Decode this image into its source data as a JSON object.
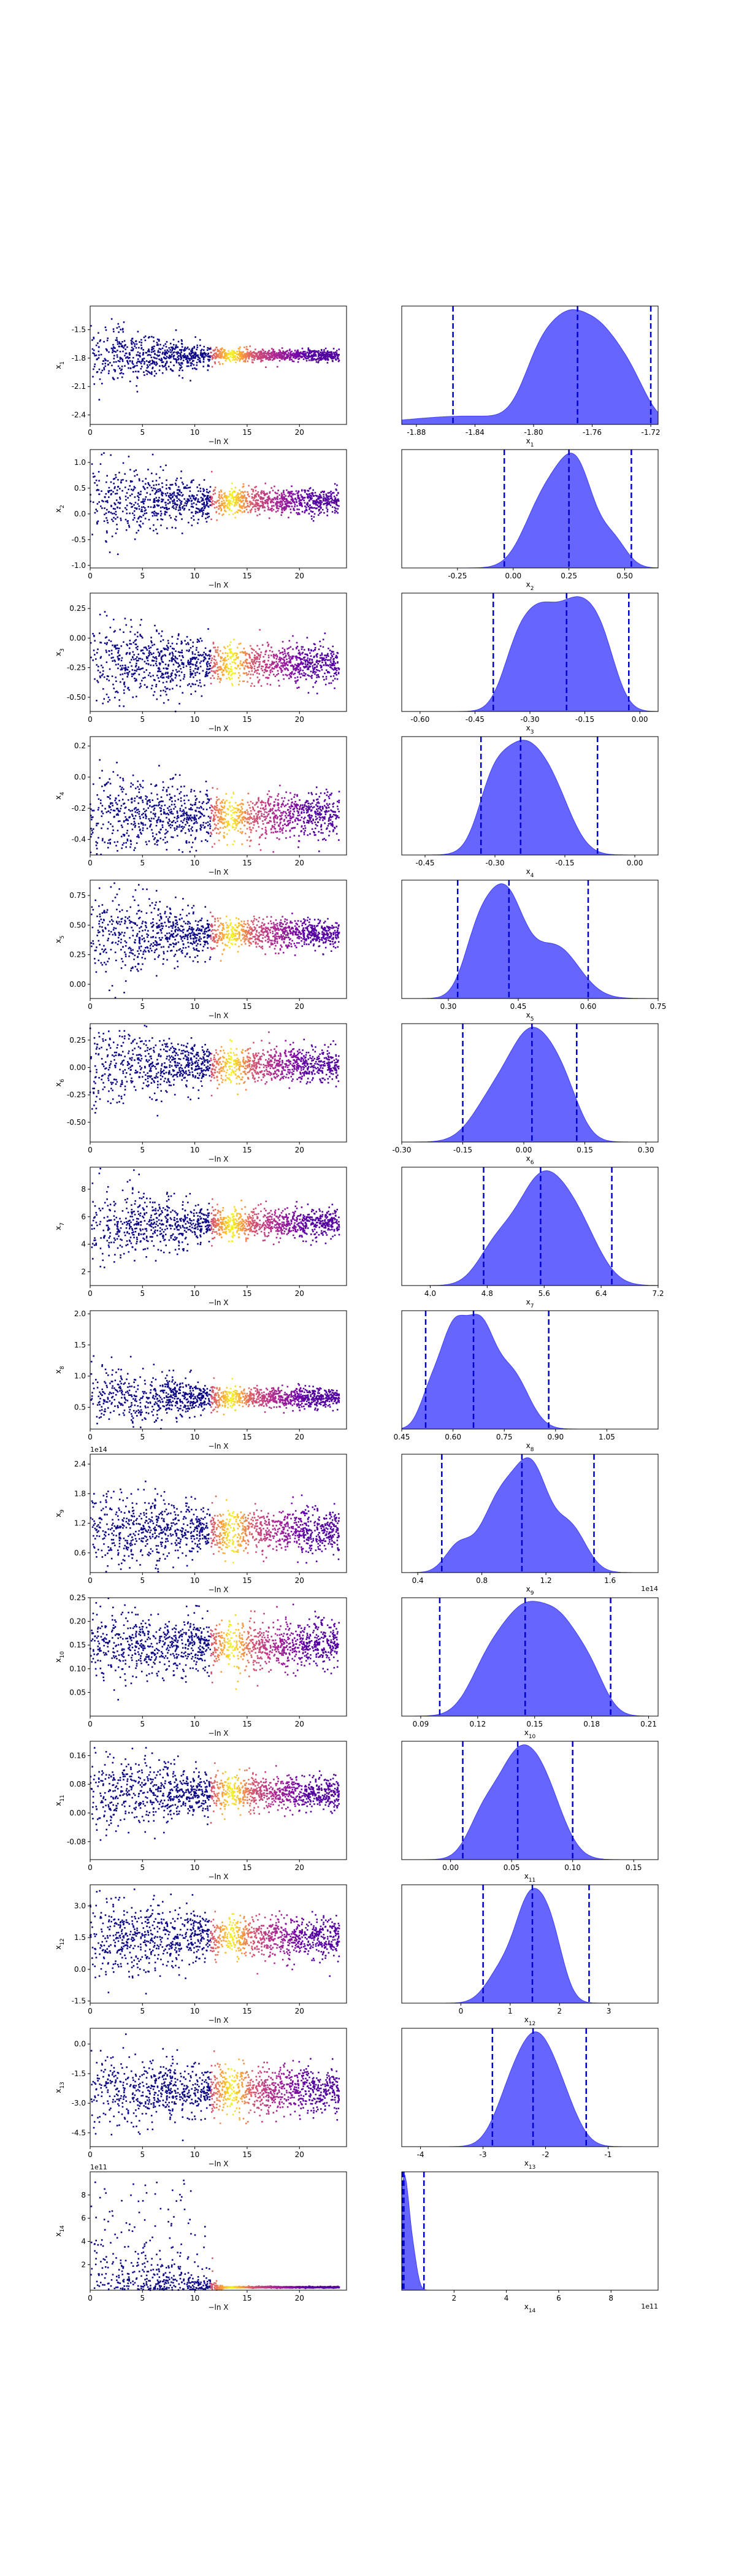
{
  "figure": {
    "colors": {
      "kde_fill": "#6666ff",
      "kde_edge": "#4040ff",
      "quantile_line": "#0000cc",
      "scatter_cmap": [
        "#0d0887",
        "#6a00a8",
        "#b12a90",
        "#e16462",
        "#fca636",
        "#f0f921"
      ]
    }
  },
  "chart_data": [
    {
      "type": "scatter",
      "xlabel": "−ln X",
      "ylabel": "x1",
      "xlim": [
        0,
        24.5
      ],
      "ylim": [
        -2.5,
        -1.25
      ],
      "xticks": [
        "0",
        "5",
        "10",
        "15",
        "20"
      ],
      "yticks": [
        "-1.5",
        "-1.8",
        "-2.1",
        "-2.4"
      ],
      "ytick_values": [
        -1.5,
        -1.8,
        -2.1,
        -2.4
      ],
      "center": -1.77,
      "sd_early": 0.18,
      "sd_late": 0.03,
      "offset": ""
    },
    {
      "type": "scatter",
      "xlabel": "−ln X",
      "ylabel": "x2",
      "xlim": [
        0,
        24.5
      ],
      "ylim": [
        -1.05,
        1.25
      ],
      "xticks": [
        "0",
        "5",
        "10",
        "15",
        "20"
      ],
      "yticks": [
        "1.0",
        "0.5",
        "0.0",
        "-0.5",
        "-1.0"
      ],
      "ytick_values": [
        1.0,
        0.5,
        0.0,
        -0.5,
        -1.0
      ],
      "center": 0.25,
      "sd_early": 0.42,
      "sd_late": 0.12,
      "offset": ""
    },
    {
      "type": "scatter",
      "xlabel": "−ln X",
      "ylabel": "x3",
      "xlim": [
        0,
        24.5
      ],
      "ylim": [
        -0.62,
        0.38
      ],
      "xticks": [
        "0",
        "5",
        "10",
        "15",
        "20"
      ],
      "yticks": [
        "0.25",
        "0.00",
        "-0.25",
        "-0.50"
      ],
      "ytick_values": [
        0.25,
        0.0,
        -0.25,
        -0.5
      ],
      "center": -0.22,
      "sd_early": 0.2,
      "sd_late": 0.08,
      "offset": ""
    },
    {
      "type": "scatter",
      "xlabel": "−ln X",
      "ylabel": "x4",
      "xlim": [
        0,
        24.5
      ],
      "ylim": [
        -0.5,
        0.26
      ],
      "xticks": [
        "0",
        "5",
        "10",
        "15",
        "20"
      ],
      "yticks": [
        "0.2",
        "0.0",
        "-0.2",
        "-0.4"
      ],
      "ytick_values": [
        0.2,
        0.0,
        -0.2,
        -0.4
      ],
      "center": -0.25,
      "sd_early": 0.15,
      "sd_late": 0.07,
      "offset": ""
    },
    {
      "type": "scatter",
      "xlabel": "−ln X",
      "ylabel": "x5",
      "xlim": [
        0,
        24.5
      ],
      "ylim": [
        -0.12,
        0.88
      ],
      "xticks": [
        "0",
        "5",
        "10",
        "15",
        "20"
      ],
      "yticks": [
        "0.75",
        "0.50",
        "0.25",
        "0.00"
      ],
      "ytick_values": [
        0.75,
        0.5,
        0.25,
        0.0
      ],
      "center": 0.43,
      "sd_early": 0.2,
      "sd_late": 0.06,
      "offset": ""
    },
    {
      "type": "scatter",
      "xlabel": "−ln X",
      "ylabel": "x6",
      "xlim": [
        0,
        24.5
      ],
      "ylim": [
        -0.68,
        0.4
      ],
      "xticks": [
        "0",
        "5",
        "10",
        "15",
        "20"
      ],
      "yticks": [
        "0.25",
        "0.00",
        "-0.25",
        "-0.50"
      ],
      "ytick_values": [
        0.25,
        0.0,
        -0.25,
        -0.5
      ],
      "center": 0.02,
      "sd_early": 0.2,
      "sd_late": 0.08,
      "offset": ""
    },
    {
      "type": "scatter",
      "xlabel": "−ln X",
      "ylabel": "x7",
      "xlim": [
        0,
        24.5
      ],
      "ylim": [
        1.0,
        9.6
      ],
      "xticks": [
        "0",
        "5",
        "10",
        "15",
        "20"
      ],
      "yticks": [
        "8",
        "6",
        "4",
        "2"
      ],
      "ytick_values": [
        8,
        6,
        4,
        2
      ],
      "center": 5.5,
      "sd_early": 1.5,
      "sd_late": 0.5,
      "offset": ""
    },
    {
      "type": "scatter",
      "xlabel": "−ln X",
      "ylabel": "x8",
      "xlim": [
        0,
        24.5
      ],
      "ylim": [
        0.15,
        2.05
      ],
      "xticks": [
        "0",
        "5",
        "10",
        "15",
        "20"
      ],
      "yticks": [
        "2.0",
        "1.5",
        "1.0",
        "0.5"
      ],
      "ytick_values": [
        2.0,
        1.5,
        1.0,
        0.5
      ],
      "center": 0.65,
      "sd_early": 0.3,
      "sd_late": 0.08,
      "offset": ""
    },
    {
      "type": "scatter",
      "xlabel": "−ln X",
      "ylabel": "x9",
      "xlim": [
        0,
        24.5
      ],
      "ylim": [
        0.2,
        2.6
      ],
      "xticks": [
        "0",
        "5",
        "10",
        "15",
        "20"
      ],
      "yticks": [
        "2.4",
        "1.8",
        "1.2",
        "0.6"
      ],
      "ytick_values": [
        2.4,
        1.8,
        1.2,
        0.6
      ],
      "center": 1.05,
      "sd_early": 0.45,
      "sd_late": 0.22,
      "offset": "1e14"
    },
    {
      "type": "scatter",
      "xlabel": "−ln X",
      "ylabel": "x10",
      "xlim": [
        0,
        24.5
      ],
      "ylim": [
        0.0,
        0.25
      ],
      "xticks": [
        "0",
        "5",
        "10",
        "15",
        "20"
      ],
      "yticks": [
        "0.25",
        "0.20",
        "0.15",
        "0.10",
        "0.05"
      ],
      "ytick_values": [
        0.25,
        0.2,
        0.15,
        0.1,
        0.05
      ],
      "center": 0.15,
      "sd_early": 0.04,
      "sd_late": 0.025,
      "offset": ""
    },
    {
      "type": "scatter",
      "xlabel": "−ln X",
      "ylabel": "x11",
      "xlim": [
        0,
        24.5
      ],
      "ylim": [
        -0.13,
        0.2
      ],
      "xticks": [
        "0",
        "5",
        "10",
        "15",
        "20"
      ],
      "yticks": [
        "0.16",
        "0.08",
        "0.00",
        "-0.08"
      ],
      "ytick_values": [
        0.16,
        0.08,
        0.0,
        -0.08
      ],
      "center": 0.055,
      "sd_early": 0.06,
      "sd_late": 0.025,
      "offset": ""
    },
    {
      "type": "scatter",
      "xlabel": "−ln X",
      "ylabel": "x12",
      "xlim": [
        0,
        24.5
      ],
      "ylim": [
        -1.6,
        4.0
      ],
      "xticks": [
        "0",
        "5",
        "10",
        "15",
        "20"
      ],
      "yticks": [
        "3.0",
        "1.5",
        "0.0",
        "-1.5"
      ],
      "ytick_values": [
        3.0,
        1.5,
        0.0,
        -1.5
      ],
      "center": 1.5,
      "sd_early": 1.1,
      "sd_late": 0.5,
      "offset": ""
    },
    {
      "type": "scatter",
      "xlabel": "−ln X",
      "ylabel": "x13",
      "xlim": [
        0,
        24.5
      ],
      "ylim": [
        -5.2,
        0.8
      ],
      "xticks": [
        "0",
        "5",
        "10",
        "15",
        "20"
      ],
      "yticks": [
        "0.0",
        "-1.5",
        "-3.0",
        "-4.5"
      ],
      "ytick_values": [
        0.0,
        -1.5,
        -3.0,
        -4.5
      ],
      "center": -2.3,
      "sd_early": 1.0,
      "sd_late": 0.6,
      "offset": ""
    },
    {
      "type": "scatter",
      "xlabel": "−ln X",
      "ylabel": "x14",
      "xlim": [
        0,
        24.5
      ],
      "ylim": [
        -0.2,
        10
      ],
      "xticks": [
        "0",
        "5",
        "10",
        "15",
        "20"
      ],
      "yticks": [
        "8",
        "6",
        "4",
        "2"
      ],
      "ytick_values": [
        8,
        6,
        4,
        2
      ],
      "center": 0.05,
      "sd_early": 2.5,
      "sd_late": 0.03,
      "offset": "1e11"
    },
    {
      "type": "area",
      "xlabel": "x1",
      "xlim": [
        -1.89,
        -1.715
      ],
      "xticks": [
        "-1.88",
        "-1.84",
        "-1.80",
        "-1.76",
        "-1.72"
      ],
      "xtick_values": [
        -1.88,
        -1.84,
        -1.8,
        -1.76,
        -1.72
      ],
      "quantiles": [
        -1.855,
        -1.77,
        -1.72
      ],
      "offset": "",
      "peaks": [
        [
          -1.845,
          0.04,
          0.1
        ],
        [
          -1.795,
          0.012,
          0.75
        ],
        [
          -1.775,
          0.012,
          0.95
        ],
        [
          -1.755,
          0.012,
          0.85
        ],
        [
          -1.735,
          0.012,
          0.55
        ]
      ]
    },
    {
      "type": "area",
      "xlabel": "x2",
      "xlim": [
        -0.5,
        0.65
      ],
      "xticks": [
        "-0.25",
        "0.00",
        "0.25",
        "0.50"
      ],
      "xtick_values": [
        -0.25,
        0.0,
        0.25,
        0.5
      ],
      "quantiles": [
        -0.04,
        0.25,
        0.53
      ],
      "offset": "",
      "peaks": [
        [
          0.22,
          0.1,
          0.9
        ],
        [
          0.3,
          0.07,
          0.6
        ],
        [
          0.1,
          0.08,
          0.35
        ],
        [
          0.45,
          0.06,
          0.3
        ]
      ]
    },
    {
      "type": "area",
      "xlabel": "x3",
      "xlim": [
        -0.65,
        0.05
      ],
      "xticks": [
        "-0.60",
        "-0.45",
        "-0.30",
        "-0.15",
        "0.00"
      ],
      "xtick_values": [
        -0.6,
        -0.45,
        -0.3,
        -0.15,
        0.0
      ],
      "quantiles": [
        -0.4,
        -0.2,
        -0.03
      ],
      "offset": "",
      "peaks": [
        [
          -0.27,
          0.05,
          0.8
        ],
        [
          -0.17,
          0.05,
          0.85
        ],
        [
          -0.1,
          0.04,
          0.45
        ],
        [
          -0.34,
          0.04,
          0.4
        ]
      ]
    },
    {
      "type": "area",
      "xlabel": "x4",
      "xlim": [
        -0.5,
        0.05
      ],
      "xticks": [
        "-0.45",
        "-0.30",
        "-0.15",
        "0.00"
      ],
      "xtick_values": [
        -0.45,
        -0.3,
        -0.15,
        0.0
      ],
      "quantiles": [
        -0.33,
        -0.245,
        -0.08
      ],
      "offset": "",
      "peaks": [
        [
          -0.245,
          0.05,
          0.95
        ],
        [
          -0.17,
          0.04,
          0.4
        ],
        [
          -0.31,
          0.03,
          0.35
        ]
      ]
    },
    {
      "type": "area",
      "xlabel": "x5",
      "xlim": [
        0.2,
        0.75
      ],
      "xticks": [
        "0.30",
        "0.45",
        "0.60",
        "0.75"
      ],
      "xtick_values": [
        0.3,
        0.45,
        0.6,
        0.75
      ],
      "quantiles": [
        0.32,
        0.43,
        0.6
      ],
      "offset": "",
      "peaks": [
        [
          0.42,
          0.04,
          0.9
        ],
        [
          0.36,
          0.03,
          0.4
        ],
        [
          0.53,
          0.05,
          0.45
        ]
      ]
    },
    {
      "type": "area",
      "xlabel": "x6",
      "xlim": [
        -0.3,
        0.33
      ],
      "xticks": [
        "-0.30",
        "-0.15",
        "0.00",
        "0.15",
        "0.30"
      ],
      "xtick_values": [
        -0.3,
        -0.15,
        0.0,
        0.15,
        0.3
      ],
      "quantiles": [
        -0.15,
        0.02,
        0.13
      ],
      "offset": "",
      "peaks": [
        [
          0.02,
          0.055,
          1.0
        ],
        [
          -0.08,
          0.05,
          0.35
        ],
        [
          0.1,
          0.04,
          0.35
        ]
      ]
    },
    {
      "type": "area",
      "xlabel": "x7",
      "xlim": [
        3.6,
        7.2
      ],
      "xticks": [
        "4.0",
        "4.8",
        "5.6",
        "6.4",
        "7.2"
      ],
      "xtick_values": [
        4.0,
        4.8,
        5.6,
        6.4,
        7.2
      ],
      "quantiles": [
        4.75,
        5.55,
        6.55
      ],
      "offset": "",
      "peaks": [
        [
          5.55,
          0.35,
          1.0
        ],
        [
          4.9,
          0.25,
          0.3
        ],
        [
          6.1,
          0.3,
          0.45
        ]
      ]
    },
    {
      "type": "area",
      "xlabel": "x8",
      "xlim": [
        0.45,
        1.2
      ],
      "xticks": [
        "0.45",
        "0.60",
        "0.75",
        "0.90",
        "1.05"
      ],
      "xtick_values": [
        0.45,
        0.6,
        0.75,
        0.9,
        1.05
      ],
      "quantiles": [
        0.52,
        0.66,
        0.88
      ],
      "offset": "",
      "peaks": [
        [
          0.6,
          0.04,
          0.85
        ],
        [
          0.68,
          0.04,
          0.8
        ],
        [
          0.77,
          0.05,
          0.5
        ],
        [
          0.53,
          0.03,
          0.25
        ]
      ]
    },
    {
      "type": "area",
      "xlabel": "x9",
      "xlim": [
        0.3,
        1.9
      ],
      "xticks": [
        "0.4",
        "0.8",
        "1.2",
        "1.6"
      ],
      "xtick_values": [
        0.4,
        0.8,
        1.2,
        1.6
      ],
      "quantiles": [
        0.55,
        1.05,
        1.5
      ],
      "offset": "1e14",
      "peaks": [
        [
          0.92,
          0.12,
          0.75
        ],
        [
          1.12,
          0.1,
          0.9
        ],
        [
          1.35,
          0.1,
          0.45
        ],
        [
          0.65,
          0.08,
          0.25
        ]
      ]
    },
    {
      "type": "area",
      "xlabel": "x10",
      "xlim": [
        0.08,
        0.215
      ],
      "xticks": [
        "0.09",
        "0.12",
        "0.15",
        "0.18",
        "0.21"
      ],
      "xtick_values": [
        0.09,
        0.12,
        0.15,
        0.18,
        0.21
      ],
      "quantiles": [
        0.1,
        0.145,
        0.19
      ],
      "offset": "",
      "peaks": [
        [
          0.145,
          0.012,
          0.9
        ],
        [
          0.165,
          0.01,
          0.65
        ],
        [
          0.125,
          0.01,
          0.4
        ],
        [
          0.18,
          0.008,
          0.3
        ]
      ]
    },
    {
      "type": "area",
      "xlabel": "x11",
      "xlim": [
        -0.04,
        0.17
      ],
      "xticks": [
        "0.00",
        "0.05",
        "0.10",
        "0.15"
      ],
      "xtick_values": [
        0.0,
        0.05,
        0.1,
        0.15
      ],
      "quantiles": [
        0.01,
        0.055,
        0.1
      ],
      "offset": "",
      "peaks": [
        [
          0.055,
          0.018,
          1.0
        ],
        [
          0.08,
          0.015,
          0.45
        ],
        [
          0.025,
          0.012,
          0.3
        ]
      ]
    },
    {
      "type": "area",
      "xlabel": "x12",
      "xlim": [
        -1.2,
        4.0
      ],
      "xticks": [
        "0",
        "1",
        "2",
        "3"
      ],
      "xtick_values": [
        0,
        1,
        2,
        3
      ],
      "quantiles": [
        0.45,
        1.45,
        2.6
      ],
      "offset": "",
      "peaks": [
        [
          1.4,
          0.3,
          1.0
        ],
        [
          1.85,
          0.25,
          0.55
        ],
        [
          0.8,
          0.3,
          0.3
        ]
      ]
    },
    {
      "type": "area",
      "xlabel": "x13",
      "xlim": [
        -4.3,
        -0.2
      ],
      "xticks": [
        "-4",
        "-3",
        "-2",
        "-1"
      ],
      "xtick_values": [
        -4,
        -3,
        -2,
        -1
      ],
      "quantiles": [
        -2.85,
        -2.2,
        -1.35
      ],
      "offset": "",
      "peaks": [
        [
          -2.15,
          0.3,
          1.0
        ],
        [
          -1.7,
          0.25,
          0.3
        ],
        [
          -2.6,
          0.25,
          0.35
        ]
      ]
    },
    {
      "type": "area",
      "xlabel": "x14",
      "xlim": [
        0,
        9.8
      ],
      "xticks": [
        "2",
        "4",
        "6",
        "8"
      ],
      "xtick_values": [
        2,
        4,
        6,
        8
      ],
      "quantiles": [
        0.02,
        0.08,
        0.85
      ],
      "offset": "1e11",
      "peaks": [
        [
          0.1,
          0.18,
          1.0
        ],
        [
          0.45,
          0.15,
          0.25
        ]
      ]
    }
  ]
}
